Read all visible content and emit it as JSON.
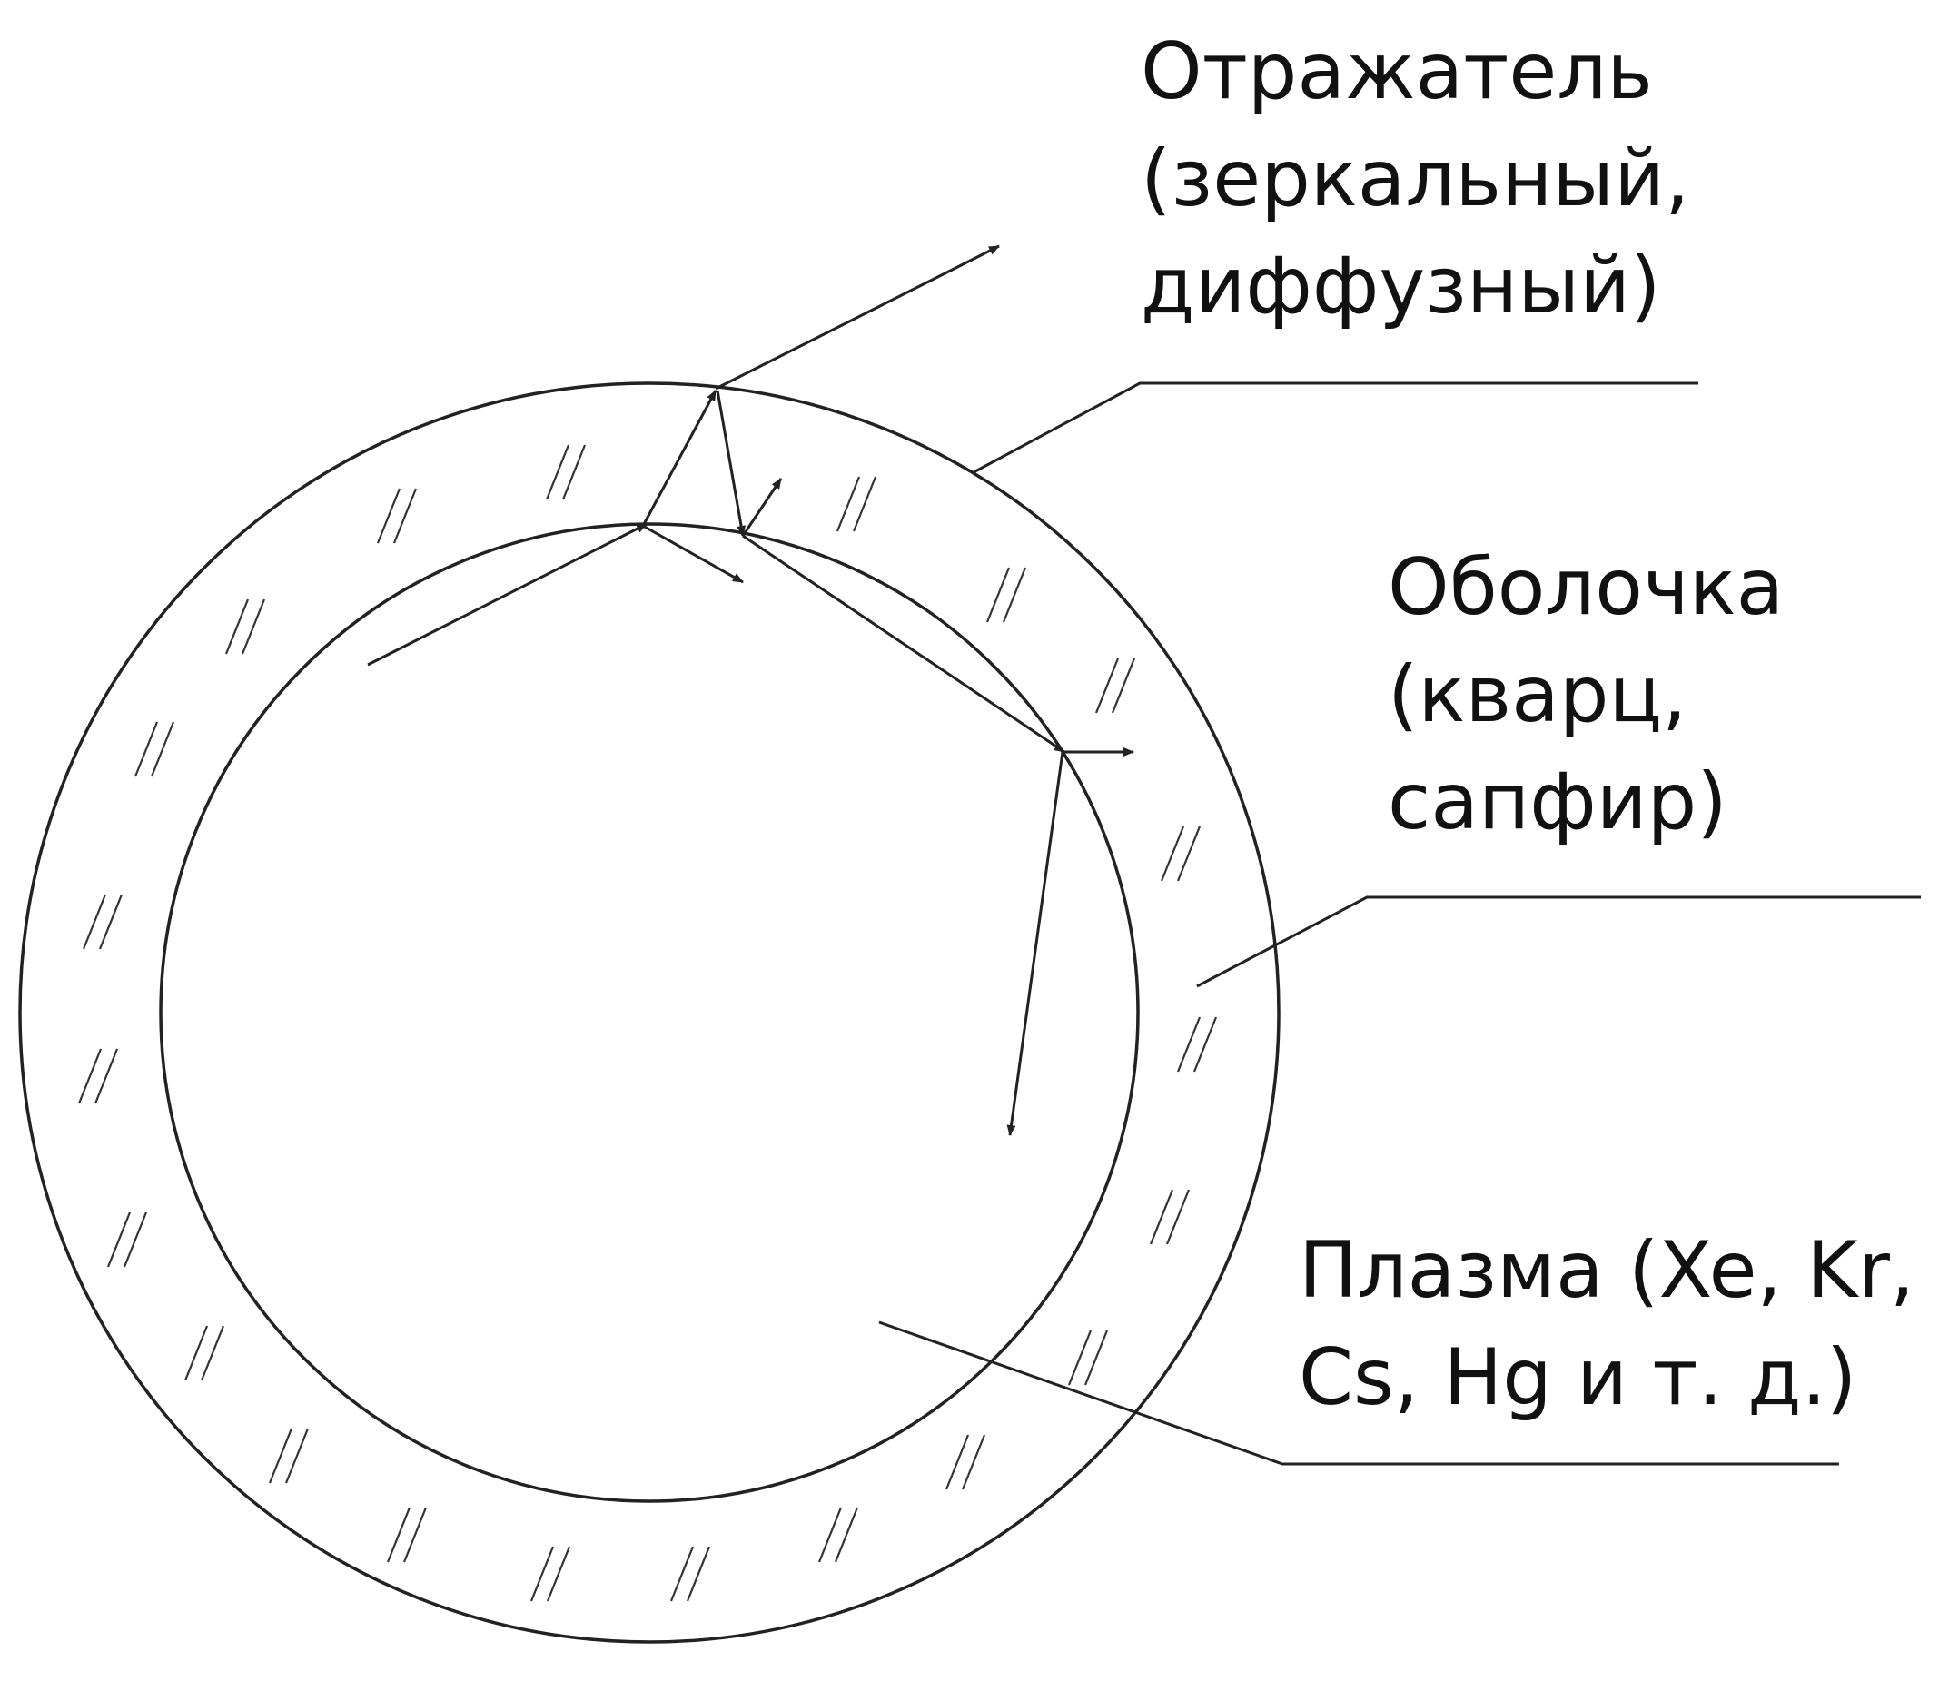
{
  "labels": {
    "reflector": [
      "Отражатель",
      "(зеркальный,",
      "диффузный)"
    ],
    "shell": [
      "Оболочка",
      "(кварц,",
      "сапфир)"
    ],
    "plasma": [
      "Плазма (Xe, Kr,",
      "Cs, Hg и т. д.)"
    ]
  },
  "colors": {
    "line": "#222222",
    "text": "#111111",
    "background": "#ffffff"
  },
  "marks": {
    "hatch_symbol": "//"
  }
}
